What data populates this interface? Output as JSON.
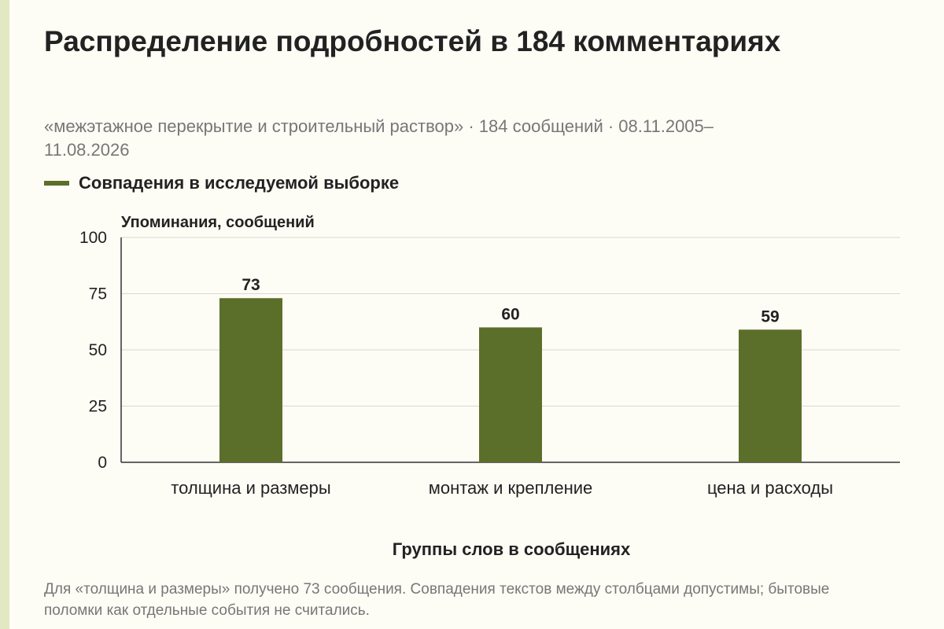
{
  "page": {
    "title": "Распределение подробностей в 184 комментариях",
    "subtitle": "«межэтажное перекрытие и строительный раствор» · 184 сообщений · 08.11.2005–11.08.2026",
    "note": "Для «толщина и размеры» получено 73 сообщения. Совпадения текстов между столбцами допустимы; бытовые поломки как отдельные события не считались."
  },
  "colors": {
    "bar": "#5b6f2a",
    "accent_strip": "#e2e8c2",
    "background": "#fdfcf5",
    "grid": "#d9d9d0",
    "axis": "#333333"
  },
  "chart_data": {
    "type": "bar",
    "categories": [
      "толщина и размеры",
      "монтаж и крепление",
      "цена и расходы"
    ],
    "series": [
      {
        "name": "Совпадения в исследуемой выборке",
        "values": [
          73,
          60,
          59
        ]
      }
    ],
    "ylabel": "Упоминания, сообщений",
    "xlabel": "Группы слов в сообщениях",
    "ylim": [
      0,
      100
    ],
    "yticks": [
      0,
      25,
      50,
      75,
      100
    ],
    "grid": true,
    "legend": "top-left",
    "data_labels": true
  }
}
